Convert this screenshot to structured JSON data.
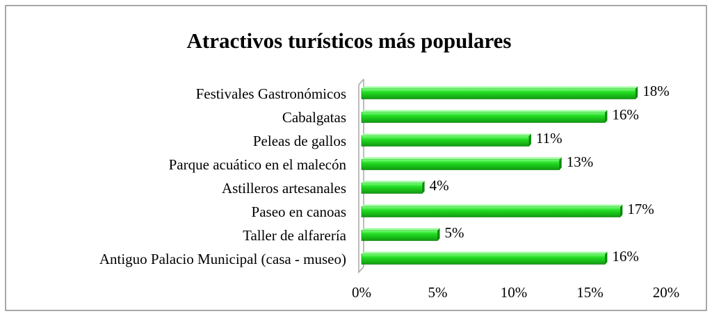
{
  "chart_data": {
    "type": "bar",
    "orientation": "horizontal",
    "title": "Atractivos turísticos más populares",
    "categories": [
      "Festivales Gastronómicos",
      "Cabalgatas",
      "Peleas de gallos",
      "Parque acuático en el malecón",
      "Astilleros artesanales",
      "Paseo en canoas",
      "Taller de alfarería",
      "Antiguo Palacio Municipal (casa - museo)"
    ],
    "values": [
      18,
      16,
      11,
      13,
      4,
      17,
      5,
      16
    ],
    "value_labels": [
      "18%",
      "16%",
      "11%",
      "13%",
      "4%",
      "17%",
      "5%",
      "16%"
    ],
    "color": "#22cc22",
    "xlim": [
      0,
      20
    ],
    "xticks": [
      {
        "value": 0,
        "label": "0%"
      },
      {
        "value": 5,
        "label": "5%"
      },
      {
        "value": 10,
        "label": "10%"
      },
      {
        "value": 15,
        "label": "15%"
      },
      {
        "value": 20,
        "label": "20%"
      }
    ],
    "grid": false
  }
}
